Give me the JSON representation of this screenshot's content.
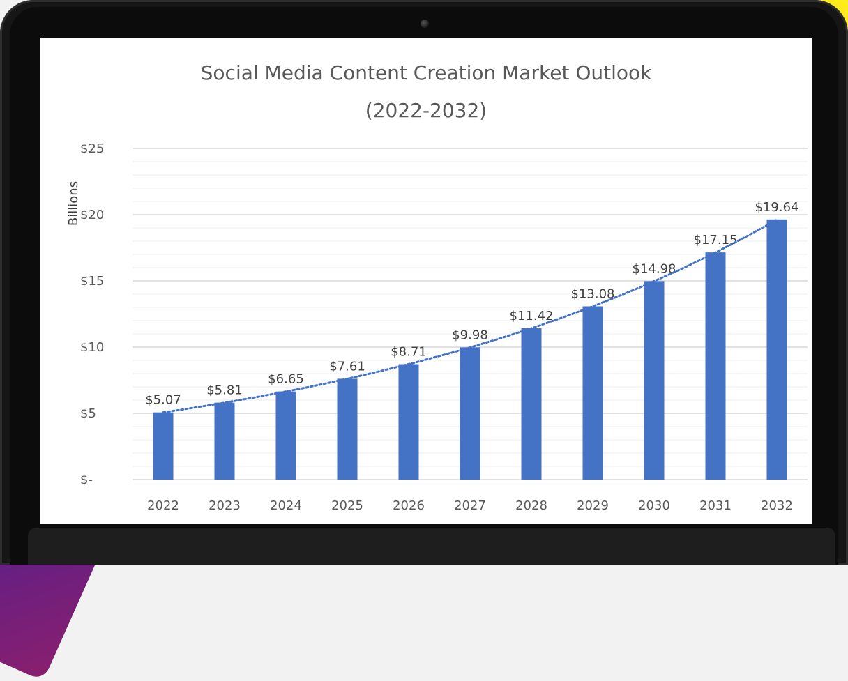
{
  "chart_data": {
    "type": "bar",
    "title": "Social Media Content Creation Market Outlook",
    "subtitle": "(2022-2032)",
    "xlabel": "",
    "ylabel": "Billions",
    "categories": [
      "2022",
      "2023",
      "2024",
      "2025",
      "2026",
      "2027",
      "2028",
      "2029",
      "2030",
      "2031",
      "2032"
    ],
    "values": [
      5.07,
      5.81,
      6.65,
      7.61,
      8.71,
      9.98,
      11.42,
      13.08,
      14.98,
      17.15,
      19.64
    ],
    "data_labels": [
      "$5.07",
      "$5.81",
      "$6.65",
      "$7.61",
      "$8.71",
      "$9.98",
      "$11.42",
      "$13.08",
      "$14.98",
      "$17.15",
      "$19.64"
    ],
    "ylim": [
      0,
      25
    ],
    "yticks": [
      0,
      5,
      10,
      15,
      20,
      25
    ],
    "ytick_labels": [
      "$-",
      "$5",
      "$10",
      "$15",
      "$20",
      "$25"
    ],
    "grid": true,
    "trendline": "dotted",
    "colors": {
      "bar": "#4472c4",
      "trendline": "#4472c4"
    }
  }
}
